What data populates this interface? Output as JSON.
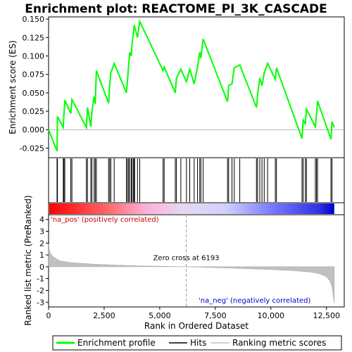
{
  "chart_data": {
    "type": "line",
    "title": "Enrichment plot: REACTOME_PI_3K_CASCADE",
    "top_panel": {
      "ylabel": "Enrichment score (ES)",
      "ylim": [
        -0.038,
        0.153
      ],
      "yticks": [
        -0.025,
        0.0,
        0.025,
        0.05,
        0.075,
        0.1,
        0.125,
        0.15
      ],
      "ytick_labels": [
        "-0.025",
        "0.000",
        "0.025",
        "0.050",
        "0.075",
        "0.100",
        "0.125",
        "0.150"
      ],
      "series": [
        {
          "name": "Enrichment profile",
          "color": "#00ff00",
          "x": [
            0,
            380,
            400,
            660,
            690,
            730,
            1000,
            1050,
            1700,
            1750,
            1900,
            1950,
            2050,
            2100,
            2150,
            2700,
            2750,
            2800,
            2950,
            3500,
            3550,
            3600,
            3650,
            3720,
            3760,
            3820,
            3850,
            3870,
            4000,
            4100,
            5150,
            5200,
            5700,
            5750,
            5950,
            6200,
            6350,
            6550,
            6700,
            6800,
            6850,
            6950,
            8050,
            8100,
            8250,
            8350,
            8600,
            9350,
            9400,
            9500,
            9600,
            9700,
            9850,
            10200,
            10250,
            11400,
            11450,
            11550,
            11600,
            12000,
            12050,
            12100,
            12700,
            12750,
            12850
          ],
          "y": [
            0.0,
            -0.029,
            0.018,
            0.003,
            0.02,
            0.04,
            0.022,
            0.041,
            0.003,
            0.03,
            0.004,
            0.025,
            0.045,
            0.035,
            0.08,
            0.036,
            0.06,
            0.077,
            0.09,
            0.05,
            0.067,
            0.087,
            0.105,
            0.1,
            0.118,
            0.13,
            0.142,
            0.14,
            0.125,
            0.147,
            0.08,
            0.085,
            0.05,
            0.07,
            0.082,
            0.065,
            0.082,
            0.062,
            0.085,
            0.105,
            0.097,
            0.123,
            0.038,
            0.06,
            0.062,
            0.084,
            0.088,
            0.03,
            0.047,
            0.07,
            0.06,
            0.077,
            0.09,
            0.068,
            0.084,
            -0.012,
            0.013,
            0.008,
            0.028,
            0.004,
            0.02,
            0.039,
            -0.013,
            0.011,
            0.003
          ]
        }
      ]
    },
    "hits_panel": {
      "series_name": "Hits",
      "hits": [
        380,
        400,
        660,
        690,
        730,
        1000,
        1050,
        1700,
        1750,
        1900,
        1950,
        2050,
        2100,
        2150,
        2700,
        2750,
        2800,
        2950,
        3500,
        3550,
        3600,
        3650,
        3720,
        3760,
        3820,
        3850,
        3870,
        4000,
        4100,
        5150,
        5200,
        5700,
        5750,
        5950,
        6200,
        6350,
        6550,
        6700,
        6800,
        6850,
        6950,
        8050,
        8100,
        8250,
        8350,
        8600,
        9350,
        9400,
        9500,
        9600,
        9700,
        9850,
        10200,
        10250,
        11400,
        11450,
        11550,
        11600,
        12000,
        12050,
        12100,
        12700,
        12750
      ]
    },
    "bottom_panel": {
      "series_name": "Ranking metric scores",
      "ylabel": "Ranked list metric (PreRanked)",
      "xlabel": "Rank in Ordered Dataset",
      "xlim": [
        0,
        13300
      ],
      "ylim": [
        -3.4,
        4.4
      ],
      "yticks": [
        -3,
        -2,
        -1,
        0,
        1,
        2,
        3,
        4
      ],
      "ytick_labels": [
        "-3",
        "-2",
        "-1",
        "0",
        "1",
        "2",
        "3",
        "4"
      ],
      "xticks": [
        0,
        2500,
        5000,
        7500,
        10000,
        12500
      ],
      "xtick_labels": [
        "0",
        "2,500",
        "5,000",
        "7,500",
        "10,000",
        "12,500"
      ],
      "x": [
        0,
        60,
        200,
        500,
        1000,
        2000,
        3000,
        4000,
        5000,
        6000,
        6193,
        7000,
        8000,
        9000,
        10000,
        11000,
        11800,
        12200,
        12500,
        12650,
        12750,
        12800,
        12850
      ],
      "y": [
        1.9,
        1.2,
        0.85,
        0.5,
        0.35,
        0.22,
        0.14,
        0.08,
        0.04,
        0.005,
        0.0,
        -0.04,
        -0.1,
        -0.17,
        -0.24,
        -0.33,
        -0.45,
        -0.6,
        -0.85,
        -1.2,
        -1.7,
        -2.4,
        -3.1
      ],
      "zero_cross_label": "Zero cross at 6193",
      "zero_cross": 6193,
      "pos_label": "'na_pos' (positively correlated)",
      "neg_label": "'na_neg' (negatively correlated)",
      "pos_color": "#cc0000",
      "neg_color": "#0000cc"
    },
    "legend": {
      "placement": "bottom",
      "items": [
        {
          "label": "Enrichment profile",
          "color": "#00ff00"
        },
        {
          "label": "Hits",
          "color": "#000000"
        },
        {
          "label": "Ranking metric scores",
          "color": "#c0c0c0"
        }
      ]
    }
  }
}
